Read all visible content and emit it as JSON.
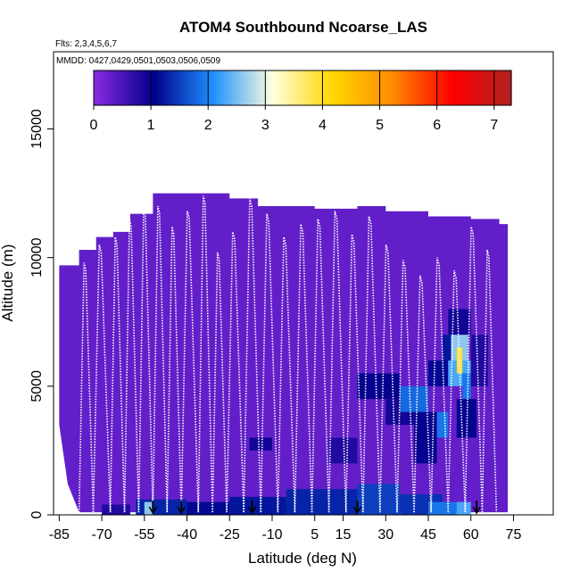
{
  "chart_data": {
    "type": "heatmap",
    "title": "ATOM4 Southbound Ncoarse_LAS",
    "flights_note": "Flts: 2,3,4,5,6,7",
    "dates_note": "MMDD: 0427,0429,0501,0503,0506,0509",
    "xlabel": "Latitude (deg N)",
    "ylabel": "Altitude (m)",
    "xlim": [
      -87,
      89
    ],
    "ylim": [
      0,
      18000
    ],
    "x_ticks": [
      -85,
      -70,
      -55,
      -40,
      -25,
      -10,
      5,
      15,
      30,
      45,
      60,
      75
    ],
    "x_tick_labels": [
      "-85",
      "-70",
      "-55",
      "-40",
      "-25",
      "-10",
      "5",
      "15",
      "30",
      "45",
      "60",
      "75"
    ],
    "y_ticks": [
      0,
      5000,
      10000,
      15000
    ],
    "y_tick_labels": [
      "0",
      "5000",
      "10000",
      "15000"
    ],
    "colorbar": {
      "min": 0,
      "max": 7.3,
      "ticks": [
        0,
        1,
        2,
        3,
        4,
        5,
        6,
        7
      ],
      "tick_labels": [
        "0",
        "1",
        "2",
        "3",
        "4",
        "5",
        "6",
        "7"
      ],
      "colors": [
        "#8a2be2",
        "#00008b",
        "#1e90ff",
        "#ffffe0",
        "#ffd700",
        "#ff8c00",
        "#ff0000",
        "#b22222"
      ]
    },
    "colorbar_label_keys": [
      "0",
      "1",
      "2",
      "3",
      "4",
      "5",
      "6",
      "7"
    ],
    "background_value": 0.3,
    "coverage_top": [
      [
        -85,
        9700
      ],
      [
        -78,
        10300
      ],
      [
        -72,
        10800
      ],
      [
        -66,
        11000
      ],
      [
        -60,
        11700
      ],
      [
        -52,
        12500
      ],
      [
        -25,
        12300
      ],
      [
        -15,
        12000
      ],
      [
        5,
        11900
      ],
      [
        20,
        12000
      ],
      [
        30,
        11800
      ],
      [
        45,
        11600
      ],
      [
        60,
        11500
      ],
      [
        70,
        11300
      ],
      [
        73,
        11000
      ]
    ],
    "coverage_bottom": [
      [
        -85,
        3500
      ],
      [
        -82,
        1200
      ],
      [
        -78,
        100
      ],
      [
        73,
        100
      ]
    ],
    "cells": [
      {
        "lat": [
          -58,
          -40
        ],
        "alt": [
          0,
          600
        ],
        "value": 1.3
      },
      {
        "lat": [
          -55,
          -52
        ],
        "alt": [
          0,
          500
        ],
        "value": 2.6
      },
      {
        "lat": [
          -40,
          -25
        ],
        "alt": [
          0,
          500
        ],
        "value": 1.1
      },
      {
        "lat": [
          -25,
          -5
        ],
        "alt": [
          0,
          700
        ],
        "value": 1.2
      },
      {
        "lat": [
          -18,
          -10
        ],
        "alt": [
          2500,
          3000
        ],
        "value": 0.9
      },
      {
        "lat": [
          -5,
          25
        ],
        "alt": [
          0,
          1000
        ],
        "value": 1.3
      },
      {
        "lat": [
          20,
          35
        ],
        "alt": [
          0,
          1200
        ],
        "value": 1.5
      },
      {
        "lat": [
          35,
          50
        ],
        "alt": [
          0,
          800
        ],
        "value": 1.4
      },
      {
        "lat": [
          45,
          55
        ],
        "alt": [
          0,
          500
        ],
        "value": 1.9
      },
      {
        "lat": [
          55,
          60
        ],
        "alt": [
          0,
          500
        ],
        "value": 2.3
      },
      {
        "lat": [
          20,
          35
        ],
        "alt": [
          4500,
          5500
        ],
        "value": 1.0
      },
      {
        "lat": [
          30,
          40
        ],
        "alt": [
          3500,
          4500
        ],
        "value": 0.9
      },
      {
        "lat": [
          35,
          45
        ],
        "alt": [
          4000,
          5000
        ],
        "value": 1.8
      },
      {
        "lat": [
          40,
          48
        ],
        "alt": [
          2000,
          4000
        ],
        "value": 1.0
      },
      {
        "lat": [
          45,
          52
        ],
        "alt": [
          5000,
          6000
        ],
        "value": 1.1
      },
      {
        "lat": [
          48,
          52
        ],
        "alt": [
          3000,
          4000
        ],
        "value": 1.9
      },
      {
        "lat": [
          50,
          58
        ],
        "alt": [
          6000,
          7000
        ],
        "value": 1.2
      },
      {
        "lat": [
          52,
          60
        ],
        "alt": [
          5000,
          6000
        ],
        "value": 2.3
      },
      {
        "lat": [
          52,
          60
        ],
        "alt": [
          7000,
          8000
        ],
        "value": 0.9
      },
      {
        "lat": [
          53,
          59
        ],
        "alt": [
          6000,
          7000
        ],
        "value": 2.6
      },
      {
        "lat": [
          55,
          57
        ],
        "alt": [
          5500,
          6500
        ],
        "value": 3.9
      },
      {
        "lat": [
          57,
          60
        ],
        "alt": [
          4500,
          5500
        ],
        "value": 1.9
      },
      {
        "lat": [
          55,
          62
        ],
        "alt": [
          3000,
          4500
        ],
        "value": 1.0
      },
      {
        "lat": [
          60,
          66
        ],
        "alt": [
          5000,
          7000
        ],
        "value": 0.8
      },
      {
        "lat": [
          10,
          20
        ],
        "alt": [
          2000,
          3000
        ],
        "value": 0.8
      },
      {
        "lat": [
          -70,
          -60
        ],
        "alt": [
          0,
          400
        ],
        "value": 0.8
      }
    ],
    "flight_track_latitudes": [
      -78,
      -73,
      -67,
      -62,
      -57,
      -52,
      -47,
      -42,
      -36,
      -31,
      -26,
      -20,
      -14,
      -8,
      -2,
      4,
      10,
      16,
      22,
      28,
      34,
      40,
      46,
      52,
      58,
      64,
      69
    ],
    "flight_track_ceilings": [
      9800,
      10500,
      10800,
      11500,
      11900,
      12000,
      11200,
      11800,
      12400,
      10200,
      11000,
      12300,
      11700,
      10800,
      11300,
      11500,
      11800,
      10900,
      11600,
      10500,
      9900,
      9300,
      10000,
      9500,
      11200,
      10300,
      11000
    ],
    "arrow_latitudes": [
      -52,
      -42,
      -17,
      20,
      62
    ]
  }
}
